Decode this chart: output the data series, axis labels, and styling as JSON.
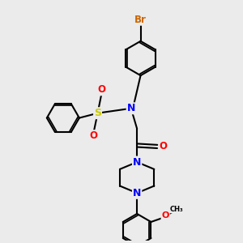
{
  "background_color": "#ebebeb",
  "bond_color": "#000000",
  "bond_width": 1.5,
  "atom_colors": {
    "Br": "#cc6600",
    "N": "#0000ff",
    "O": "#ff0000",
    "S": "#cccc00",
    "C": "#000000"
  },
  "font_size_atom": 8.5
}
